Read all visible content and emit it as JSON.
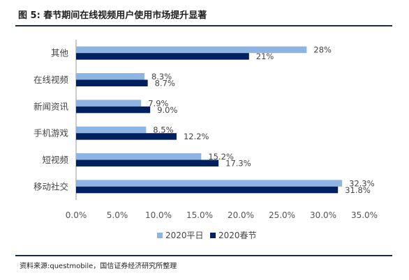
{
  "figure": {
    "title": "图 5: 春节期间在线视频用户使用市场提升显著",
    "source": "资料来源:questmobile，国信证券经济研究所整理"
  },
  "colors": {
    "weekday": "#8db4e2",
    "festival": "#002060",
    "axis": "#999999"
  },
  "chart_data": {
    "type": "bar",
    "orientation": "horizontal",
    "title": "",
    "categories": [
      "其他",
      "在线视频",
      "新闻资讯",
      "手机游戏",
      "短视频",
      "移动社交"
    ],
    "series": [
      {
        "name": "2020平日",
        "values": [
          28,
          8.3,
          7.9,
          8.5,
          15.2,
          32.3
        ],
        "labels": [
          "28%",
          "8.3%",
          "7.9%",
          "8.5%",
          "15.2%",
          "32.3%"
        ]
      },
      {
        "name": "2020春节",
        "values": [
          21,
          8.7,
          9.0,
          12.2,
          17.3,
          31.8
        ],
        "labels": [
          "21%",
          "8.7%",
          "9.0%",
          "12.2%",
          "17.3%",
          "31.8%"
        ]
      }
    ],
    "xlim": [
      0,
      35
    ],
    "xticks": [
      "0.0%",
      "5.0%",
      "10.0%",
      "15.0%",
      "20.0%",
      "25.0%",
      "30.0%",
      "35.0%"
    ],
    "grid": false,
    "legend_position": "bottom"
  }
}
